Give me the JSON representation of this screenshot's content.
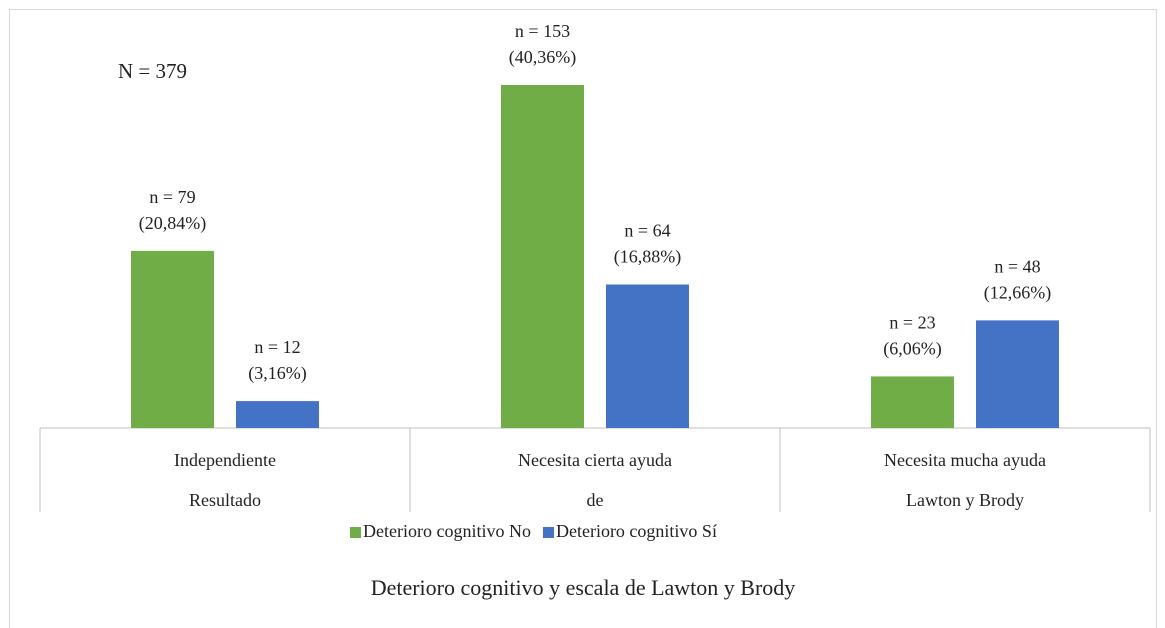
{
  "chart_data": {
    "type": "bar",
    "title": "Deterioro cognitivo y escala de Lawton y Brody",
    "annotation": "N = 379",
    "categories": [
      "Independiente",
      "Necesita cierta ayuda",
      "Necesita mucha ayuda"
    ],
    "category_group_labels": [
      "Resultado",
      "de",
      "Lawton y Brody"
    ],
    "series": [
      {
        "name": "Deterioro cognitivo No",
        "color": "#70ad47",
        "values": [
          79,
          153,
          23
        ],
        "value_labels": [
          [
            "n = 79",
            "(20,84%)"
          ],
          [
            "n = 153",
            "(40,36%)"
          ],
          [
            "n = 23",
            "(6,06%)"
          ]
        ]
      },
      {
        "name": "Deterioro cognitivo Sí",
        "color": "#4472c4",
        "values": [
          12,
          64,
          48
        ],
        "value_labels": [
          [
            "n = 12",
            "(3,16%)"
          ],
          [
            "n = 64",
            "(16,88%)"
          ],
          [
            "n = 48",
            "(12,66%)"
          ]
        ]
      }
    ]
  }
}
